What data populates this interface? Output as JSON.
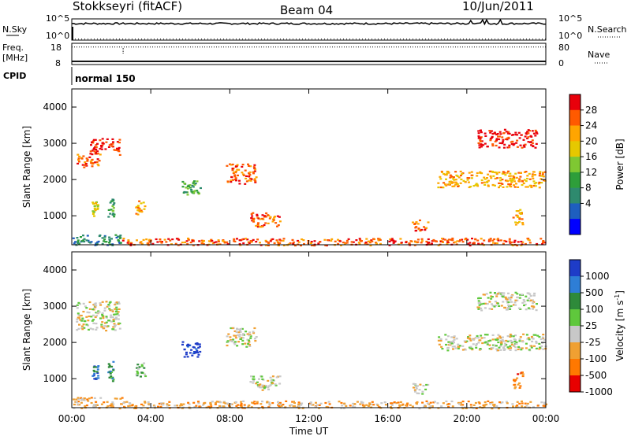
{
  "header": {
    "station": "Stokkseyri (fitACF)",
    "beam": "Beam 04",
    "date": "10/Jun/2011"
  },
  "chart_data": [
    {
      "type": "line",
      "name": "noise_panel",
      "left_label": "N.Sky",
      "right_label": "N.Search",
      "left_ticks": [
        "10^5",
        "10^0"
      ],
      "right_ticks": [
        "10^5",
        "10^0"
      ],
      "x_range_hours": [
        0,
        24
      ],
      "series": [
        {
          "name": "N.Sky",
          "style": "solid",
          "level": 0.78
        },
        {
          "name": "N.Search",
          "style": "dotted",
          "level": 0.05
        }
      ]
    },
    {
      "type": "line",
      "name": "freq_panel",
      "left_label_lines": [
        "Freq.",
        "[MHz]"
      ],
      "right_label": "Nave",
      "left_ticks": [
        "18",
        "8"
      ],
      "right_ticks": [
        "80",
        "0"
      ],
      "freq_range_mhz": [
        8,
        18
      ],
      "nave_range": [
        0,
        80
      ],
      "series": [
        {
          "name": "Freq.",
          "style": "solid",
          "value": 9.5
        },
        {
          "name": "Nave",
          "style": "dotted",
          "value": 66
        }
      ]
    },
    {
      "type": "table",
      "name": "cpid_panel",
      "label": "CPID",
      "entries": [
        {
          "x_hour": 0,
          "text": "normal 150"
        }
      ]
    },
    {
      "type": "heatmap",
      "name": "power_panel",
      "ylabel": "Slant Range [km]",
      "ylim": [
        200,
        4500
      ],
      "yticks": [
        1000,
        2000,
        3000,
        4000
      ],
      "xlim": [
        0,
        24
      ],
      "colorbar": {
        "label": "Power [dB]",
        "ticks": [
          "28",
          "24",
          "20",
          "16",
          "12",
          "8",
          "4"
        ],
        "colors": [
          "#e8000b",
          "#ff5a00",
          "#ffa500",
          "#e6c800",
          "#7fc832",
          "#2e9e3a",
          "#2e8a6e",
          "#1e5fbf",
          "#0000ff"
        ]
      },
      "echo_regions": [
        {
          "t0": 0.2,
          "t1": 1.4,
          "r0": 2350,
          "r1": 2750,
          "level": 1
        },
        {
          "t0": 0.9,
          "t1": 2.4,
          "r0": 2700,
          "r1": 3150,
          "level": 0
        },
        {
          "t0": 1.0,
          "t1": 1.3,
          "r0": 1000,
          "r1": 1400,
          "level": 3
        },
        {
          "t0": 1.8,
          "t1": 2.1,
          "r0": 950,
          "r1": 1500,
          "level": 5
        },
        {
          "t0": 3.2,
          "t1": 3.7,
          "r0": 1050,
          "r1": 1450,
          "level": 2
        },
        {
          "t0": 5.5,
          "t1": 6.5,
          "r0": 1600,
          "r1": 2050,
          "level": 5
        },
        {
          "t0": 7.8,
          "t1": 9.3,
          "r0": 1900,
          "r1": 2450,
          "level": 1
        },
        {
          "t0": 9.0,
          "t1": 10.5,
          "r0": 700,
          "r1": 1100,
          "level": 1
        },
        {
          "t0": 17.2,
          "t1": 18.0,
          "r0": 600,
          "r1": 900,
          "level": 1
        },
        {
          "t0": 18.5,
          "t1": 24.0,
          "r0": 1800,
          "r1": 2250,
          "level": 2
        },
        {
          "t0": 20.5,
          "t1": 23.5,
          "r0": 2900,
          "r1": 3400,
          "level": 0
        },
        {
          "t0": 22.3,
          "t1": 22.8,
          "r0": 750,
          "r1": 1200,
          "level": 2
        },
        {
          "t0": 0.0,
          "t1": 2.5,
          "r0": 200,
          "r1": 500,
          "level": 6
        },
        {
          "t0": 2.5,
          "t1": 24.0,
          "r0": 200,
          "r1": 400,
          "level": 1
        }
      ]
    },
    {
      "type": "heatmap",
      "name": "velocity_panel",
      "ylabel": "Slant Range [km]",
      "ylim": [
        200,
        4500
      ],
      "yticks": [
        1000,
        2000,
        3000,
        4000
      ],
      "xlim": [
        0,
        24
      ],
      "xticks": [
        "00:00",
        "04:00",
        "08:00",
        "12:00",
        "16:00",
        "20:00",
        "00:00"
      ],
      "xlabel": "Time UT",
      "colorbar": {
        "label_main": "Velocity",
        "label_unit": "[m s",
        "label_exp": "-1",
        "label_close": "]",
        "ticks": [
          "1000",
          "500",
          "100",
          "25",
          "-25",
          "-100",
          "-500",
          "-1000"
        ],
        "colors": [
          "#1e3cc8",
          "#2e7ed6",
          "#2e8a3a",
          "#5fc83c",
          "#c8c8c8",
          "#f0a032",
          "#ff7800",
          "#e80000"
        ]
      },
      "echo_regions": [
        {
          "t0": 0.2,
          "t1": 2.4,
          "r0": 2350,
          "r1": 3150,
          "level": 4
        },
        {
          "t0": 1.0,
          "t1": 1.3,
          "r0": 1000,
          "r1": 1400,
          "level": 1
        },
        {
          "t0": 1.8,
          "t1": 2.1,
          "r0": 950,
          "r1": 1500,
          "level": 2
        },
        {
          "t0": 3.2,
          "t1": 3.7,
          "r0": 1050,
          "r1": 1450,
          "level": 3
        },
        {
          "t0": 5.5,
          "t1": 6.5,
          "r0": 1600,
          "r1": 2050,
          "level": 0
        },
        {
          "t0": 7.8,
          "t1": 9.3,
          "r0": 1900,
          "r1": 2450,
          "level": 4
        },
        {
          "t0": 9.0,
          "t1": 10.5,
          "r0": 700,
          "r1": 1100,
          "level": 4
        },
        {
          "t0": 17.2,
          "t1": 18.0,
          "r0": 600,
          "r1": 900,
          "level": 4
        },
        {
          "t0": 18.5,
          "t1": 24.0,
          "r0": 1800,
          "r1": 2250,
          "level": 4
        },
        {
          "t0": 20.5,
          "t1": 23.5,
          "r0": 2900,
          "r1": 3400,
          "level": 4
        },
        {
          "t0": 22.3,
          "t1": 22.8,
          "r0": 750,
          "r1": 1200,
          "level": 6
        },
        {
          "t0": 0.0,
          "t1": 2.5,
          "r0": 200,
          "r1": 500,
          "level": 5
        },
        {
          "t0": 2.5,
          "t1": 24.0,
          "r0": 200,
          "r1": 400,
          "level": 5
        }
      ]
    }
  ]
}
